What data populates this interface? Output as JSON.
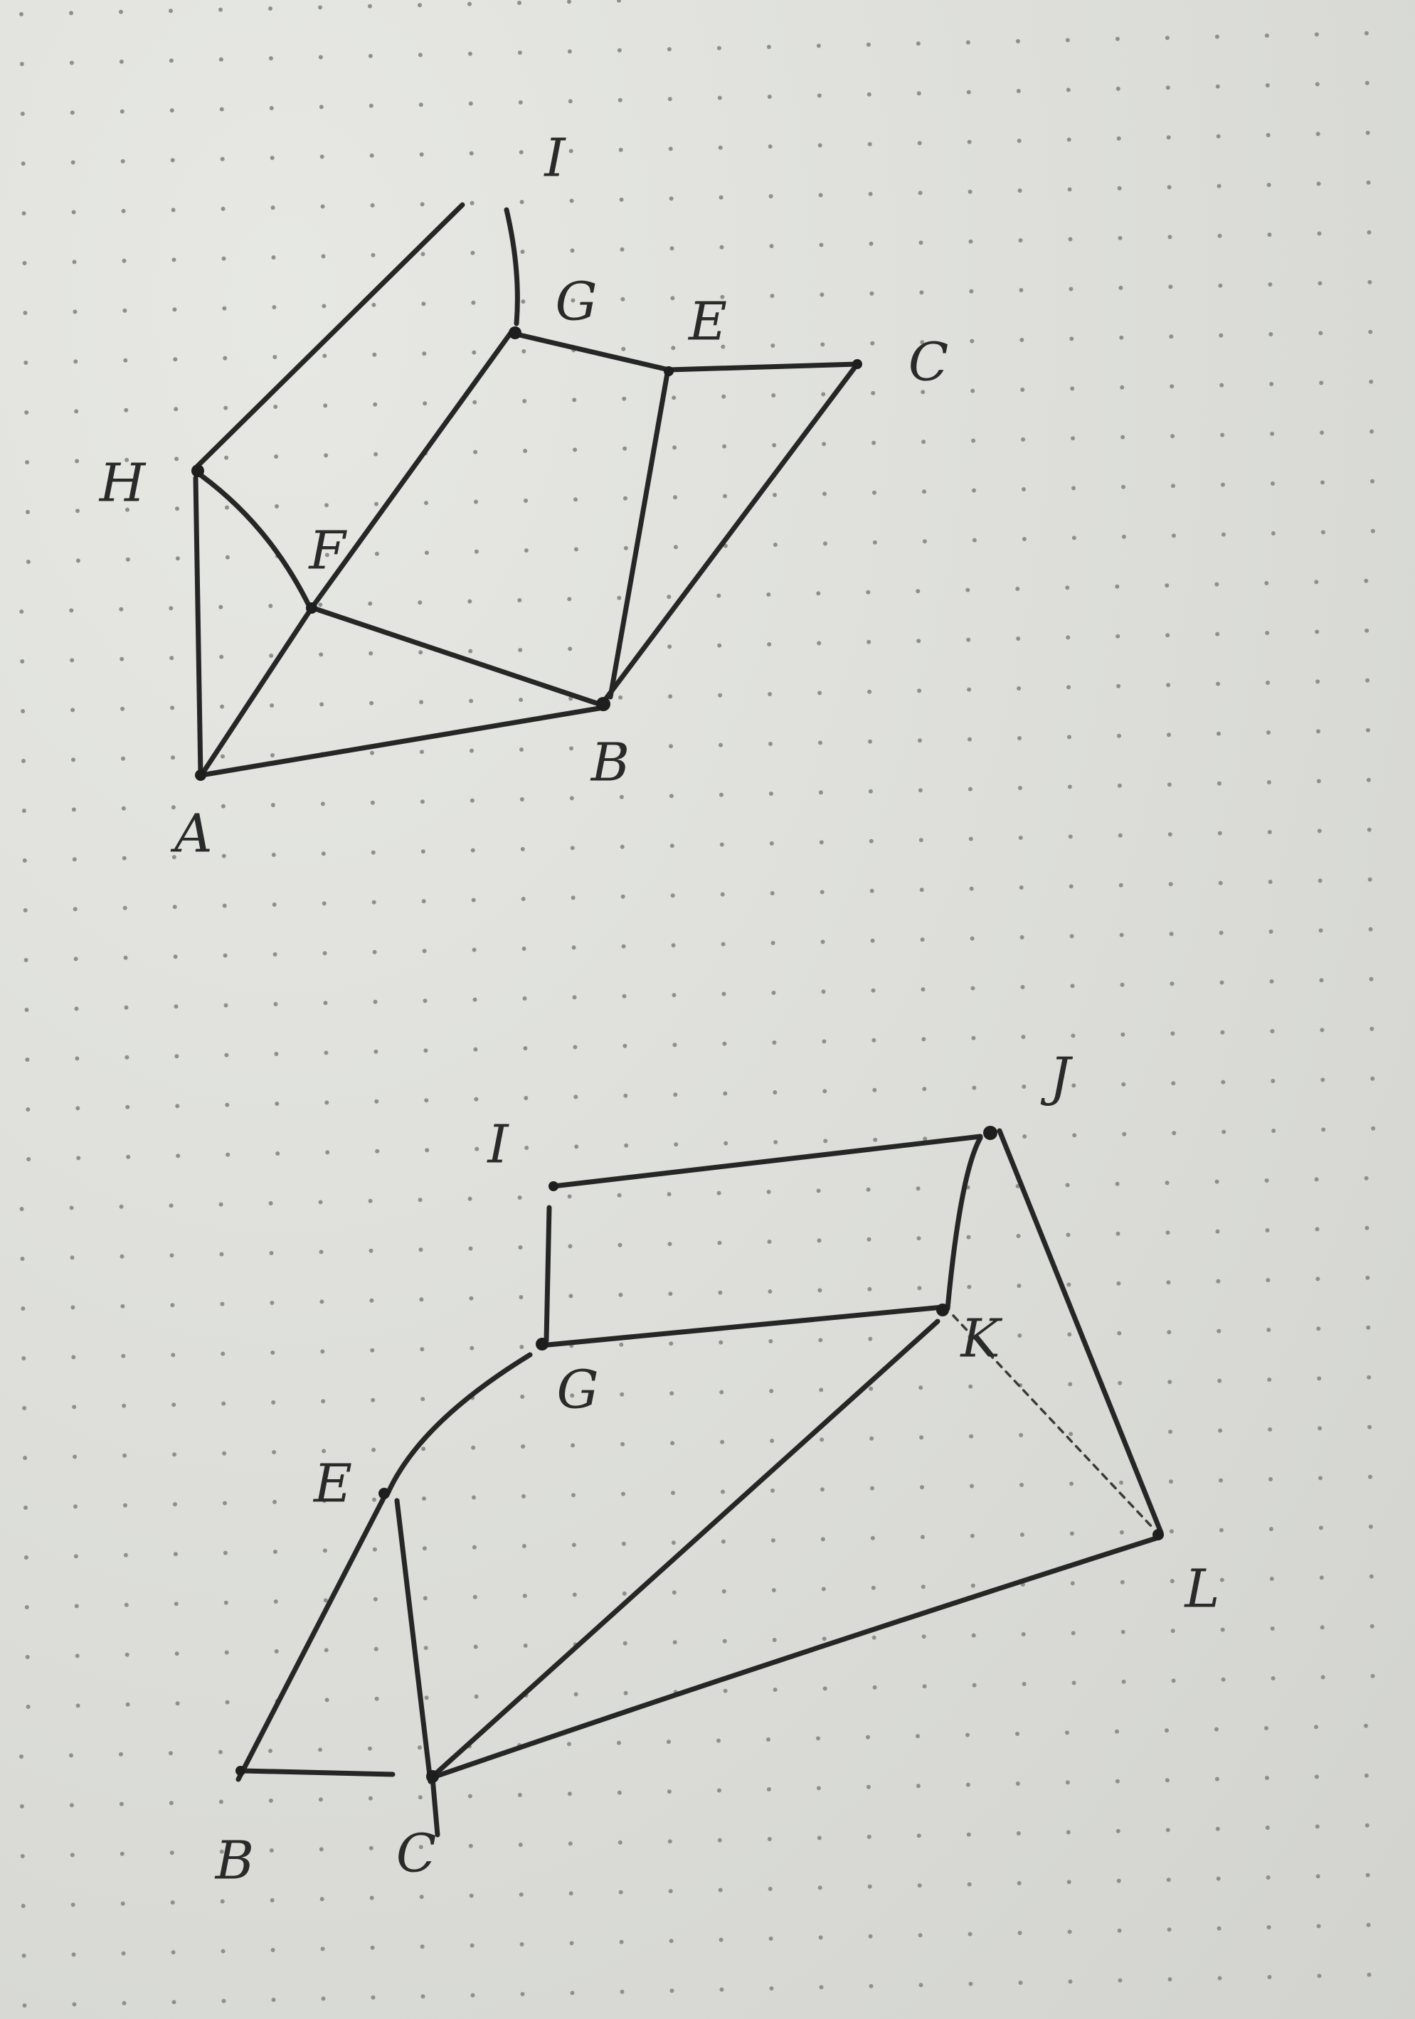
{
  "graphs": [
    {
      "name": "upper-graph",
      "vertices": [
        "I",
        "G",
        "E",
        "C",
        "H",
        "F",
        "B",
        "A"
      ],
      "edges": [
        [
          "I",
          "G"
        ],
        [
          "G",
          "E"
        ],
        [
          "E",
          "C"
        ],
        [
          "G",
          "F"
        ],
        [
          "E",
          "B"
        ],
        [
          "C",
          "B"
        ],
        [
          "H",
          "F"
        ],
        [
          "H",
          "A"
        ],
        [
          "F",
          "A"
        ],
        [
          "F",
          "B"
        ],
        [
          "A",
          "B"
        ]
      ],
      "open_strokes": [
        "H-to-I-stroke"
      ]
    },
    {
      "name": "lower-graph",
      "vertices": [
        "J",
        "I",
        "K",
        "G",
        "E",
        "L",
        "B",
        "C"
      ],
      "edges": [
        [
          "I",
          "J"
        ],
        [
          "I",
          "G"
        ],
        [
          "G",
          "K"
        ],
        [
          "J",
          "K"
        ],
        [
          "J",
          "L"
        ],
        [
          "G",
          "E"
        ],
        [
          "E",
          "B"
        ],
        [
          "E",
          "C"
        ],
        [
          "B",
          "C"
        ],
        [
          "C",
          "K"
        ],
        [
          "C",
          "L"
        ]
      ],
      "dashed_edges": [
        [
          "K",
          "L"
        ]
      ]
    }
  ],
  "colors": {
    "ink": "#262626",
    "paper": "#dedfdb",
    "grid_dot": "#8f908c"
  }
}
